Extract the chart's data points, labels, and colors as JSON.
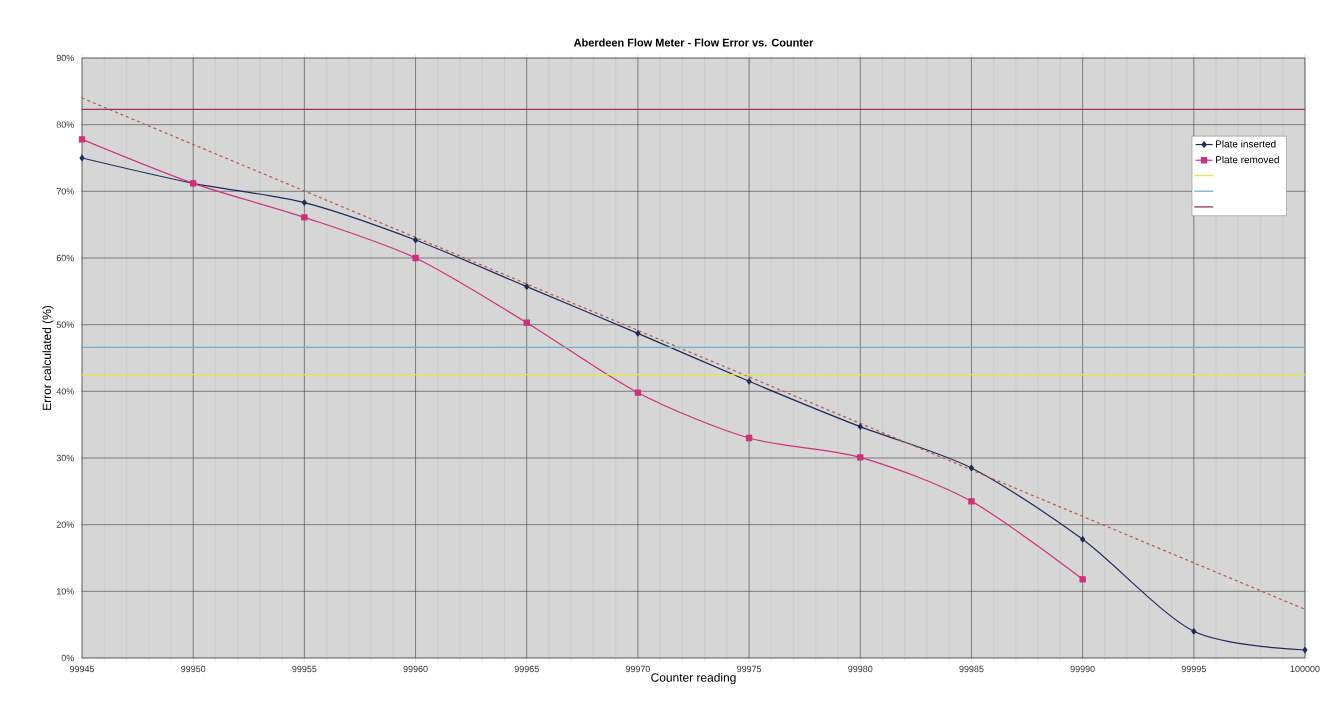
{
  "chart_data": {
    "type": "line",
    "title": "Aberdeen Flow Meter - Flow Error vs. Counter",
    "xlabel": "Counter reading",
    "ylabel": "Error calculated (%)",
    "x": [
      99945,
      99950,
      99955,
      99960,
      99965,
      99970,
      99975,
      99980,
      99985,
      99990,
      99995,
      100000
    ],
    "series": [
      {
        "name": "Plate inserted",
        "color": "#1f2a5a",
        "marker": "diamond",
        "values": [
          75,
          71.2,
          68.3,
          62.7,
          55.7,
          48.7,
          41.5,
          34.7,
          28.5,
          17.8,
          4,
          1.2
        ]
      },
      {
        "name": "Plate removed",
        "color": "#d0307a",
        "marker": "square",
        "values": [
          77.8,
          71.2,
          66.1,
          60,
          50.3,
          39.8,
          33,
          30.1,
          23.5,
          11.8,
          null,
          null
        ]
      },
      {
        "type": "line",
        "color": "#b5584a",
        "marker": "none",
        "line_style": "dashed",
        "x": [
          99945,
          100000
        ],
        "values": [
          84,
          7.3
        ]
      }
    ],
    "ref_lines": [
      {
        "axis": "y",
        "value": 42.5,
        "color": "#e6e640"
      },
      {
        "axis": "y",
        "value": 46.6,
        "color": "#6fb0c8"
      },
      {
        "axis": "y",
        "value": 82.3,
        "color": "#a0305a"
      }
    ],
    "xlim": [
      99945,
      100000
    ],
    "ylim": [
      0,
      90
    ],
    "xticks": [
      99945,
      99950,
      99955,
      99960,
      99965,
      99970,
      99975,
      99980,
      99985,
      99990,
      99995,
      100000
    ],
    "yticks": [
      {
        "value": 0,
        "label": "0%"
      },
      {
        "value": 10,
        "label": "10%"
      },
      {
        "value": 20,
        "label": "20%"
      },
      {
        "value": 30,
        "label": "30%"
      },
      {
        "value": 40,
        "label": "40%"
      },
      {
        "value": 50,
        "label": "50%"
      },
      {
        "value": 60,
        "label": "60%"
      },
      {
        "value": 70,
        "label": "70%"
      },
      {
        "value": 80,
        "label": "80%"
      },
      {
        "value": 90,
        "label": "90%"
      }
    ],
    "grid": true,
    "legend": "top right"
  }
}
